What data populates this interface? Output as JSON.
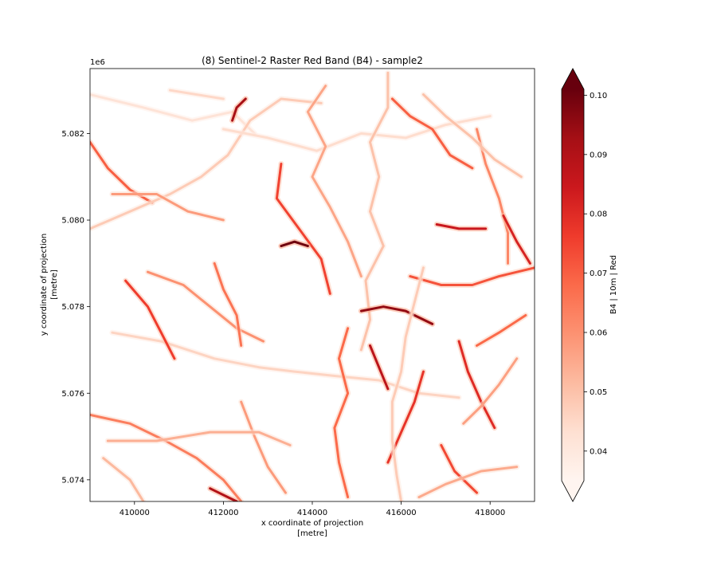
{
  "chart_data": {
    "type": "heatmap",
    "title": "(8) Sentinel-2 Raster Red Band (B4) - sample2",
    "xlabel": "x coordinate of projection",
    "xlabel_units": "[metre]",
    "ylabel": "y coordinate of projection",
    "ylabel_units": "[metre]",
    "xlim": [
      409000,
      419000
    ],
    "ylim": [
      5073500,
      5083500
    ],
    "x_ticks": [
      410000,
      412000,
      414000,
      416000,
      418000
    ],
    "x_tick_labels": [
      "410000",
      "412000",
      "414000",
      "416000",
      "418000"
    ],
    "y_ticks": [
      5074000,
      5076000,
      5078000,
      5080000,
      5082000
    ],
    "y_tick_labels": [
      "5.074",
      "5.076",
      "5.078",
      "5.080",
      "5.082"
    ],
    "y_offset_label": "1e6",
    "colorbar": {
      "label": "B4 | 10m | Red",
      "colormap": "Reds",
      "vmin": 0.035,
      "vmax": 0.101,
      "extend": "both",
      "ticks": [
        0.04,
        0.05,
        0.06,
        0.07,
        0.08,
        0.09,
        0.1
      ],
      "tick_labels": [
        "0.04",
        "0.05",
        "0.06",
        "0.07",
        "0.08",
        "0.09",
        "0.10"
      ]
    },
    "grid": false,
    "background_value": "NaN",
    "features": [
      {
        "v": 0.042,
        "pts": [
          [
            409000,
            5082900
          ],
          [
            410200,
            5082600
          ],
          [
            411300,
            5082300
          ],
          [
            412200,
            5082500
          ],
          [
            412700,
            5082000
          ]
        ]
      },
      {
        "v": 0.07,
        "pts": [
          [
            409000,
            5081800
          ],
          [
            409400,
            5081200
          ],
          [
            409900,
            5080700
          ],
          [
            410400,
            5080400
          ]
        ]
      },
      {
        "v": 0.048,
        "pts": [
          [
            409000,
            5079800
          ],
          [
            409900,
            5080200
          ],
          [
            410800,
            5080600
          ],
          [
            411500,
            5081000
          ],
          [
            412100,
            5081500
          ],
          [
            412600,
            5082300
          ],
          [
            413300,
            5082800
          ],
          [
            414200,
            5082700
          ]
        ]
      },
      {
        "v": 0.058,
        "pts": [
          [
            409500,
            5080600
          ],
          [
            410500,
            5080600
          ],
          [
            411200,
            5080200
          ],
          [
            412000,
            5080000
          ]
        ]
      },
      {
        "v": 0.044,
        "pts": [
          [
            412000,
            5082100
          ],
          [
            413000,
            5081900
          ],
          [
            414100,
            5081600
          ],
          [
            415100,
            5082000
          ],
          [
            416100,
            5081900
          ],
          [
            417000,
            5082200
          ],
          [
            418000,
            5082400
          ]
        ]
      },
      {
        "v": 0.075,
        "pts": [
          [
            413300,
            5081300
          ],
          [
            413200,
            5080500
          ],
          [
            413700,
            5079800
          ],
          [
            414200,
            5079100
          ],
          [
            414400,
            5078300
          ]
        ]
      },
      {
        "v": 0.056,
        "pts": [
          [
            414300,
            5083100
          ],
          [
            413900,
            5082500
          ],
          [
            414300,
            5081700
          ],
          [
            414000,
            5081000
          ],
          [
            414400,
            5080300
          ],
          [
            414800,
            5079500
          ],
          [
            415100,
            5078700
          ]
        ]
      },
      {
        "v": 0.05,
        "pts": [
          [
            415700,
            5083400
          ],
          [
            415700,
            5082600
          ],
          [
            415300,
            5081800
          ],
          [
            415500,
            5081000
          ],
          [
            415300,
            5080200
          ],
          [
            415600,
            5079400
          ],
          [
            415200,
            5078600
          ],
          [
            415300,
            5077700
          ],
          [
            415100,
            5077000
          ]
        ]
      },
      {
        "v": 0.095,
        "pts": [
          [
            415100,
            5077900
          ],
          [
            415600,
            5078000
          ],
          [
            416100,
            5077900
          ],
          [
            416700,
            5077600
          ]
        ]
      },
      {
        "v": 0.072,
        "pts": [
          [
            416200,
            5078700
          ],
          [
            416900,
            5078500
          ],
          [
            417600,
            5078500
          ],
          [
            418200,
            5078700
          ],
          [
            419000,
            5078900
          ]
        ]
      },
      {
        "v": 0.046,
        "pts": [
          [
            409500,
            5077400
          ],
          [
            410600,
            5077200
          ],
          [
            411800,
            5076800
          ],
          [
            412800,
            5076600
          ],
          [
            413600,
            5076500
          ],
          [
            414500,
            5076400
          ],
          [
            415500,
            5076300
          ],
          [
            416400,
            5076000
          ],
          [
            417300,
            5075900
          ]
        ]
      },
      {
        "v": 0.06,
        "pts": [
          [
            410300,
            5078800
          ],
          [
            411100,
            5078500
          ],
          [
            411700,
            5078000
          ],
          [
            412300,
            5077500
          ],
          [
            412900,
            5077200
          ]
        ]
      },
      {
        "v": 0.068,
        "pts": [
          [
            414800,
            5077500
          ],
          [
            414600,
            5076800
          ],
          [
            414800,
            5076000
          ],
          [
            414500,
            5075200
          ],
          [
            414600,
            5074400
          ],
          [
            414800,
            5073600
          ]
        ]
      },
      {
        "v": 0.078,
        "pts": [
          [
            416500,
            5076500
          ],
          [
            416300,
            5075800
          ],
          [
            416000,
            5075100
          ],
          [
            415700,
            5074400
          ]
        ]
      },
      {
        "v": 0.08,
        "pts": [
          [
            417300,
            5077200
          ],
          [
            417500,
            5076500
          ],
          [
            417800,
            5075800
          ],
          [
            418100,
            5075200
          ]
        ]
      },
      {
        "v": 0.062,
        "pts": [
          [
            417700,
            5082100
          ],
          [
            417900,
            5081300
          ],
          [
            418200,
            5080500
          ],
          [
            418400,
            5079700
          ],
          [
            418400,
            5079000
          ]
        ]
      },
      {
        "v": 0.085,
        "pts": [
          [
            416800,
            5079900
          ],
          [
            417300,
            5079800
          ],
          [
            417900,
            5079800
          ]
        ]
      },
      {
        "v": 0.064,
        "pts": [
          [
            409000,
            5075500
          ],
          [
            409900,
            5075300
          ],
          [
            410700,
            5074900
          ],
          [
            411400,
            5074500
          ],
          [
            412000,
            5074000
          ],
          [
            412400,
            5073500
          ]
        ]
      },
      {
        "v": 0.052,
        "pts": [
          [
            409300,
            5074500
          ],
          [
            409900,
            5074000
          ],
          [
            410200,
            5073500
          ]
        ]
      },
      {
        "v": 0.058,
        "pts": [
          [
            412400,
            5075800
          ],
          [
            412700,
            5075000
          ],
          [
            413000,
            5074300
          ],
          [
            413400,
            5073700
          ]
        ]
      },
      {
        "v": 0.054,
        "pts": [
          [
            409400,
            5074900
          ],
          [
            410500,
            5074900
          ],
          [
            411700,
            5075100
          ],
          [
            412800,
            5075100
          ],
          [
            413500,
            5074800
          ]
        ]
      },
      {
        "v": 0.09,
        "pts": [
          [
            411700,
            5073800
          ],
          [
            412100,
            5073600
          ],
          [
            412300,
            5073500
          ]
        ]
      },
      {
        "v": 0.074,
        "pts": [
          [
            416900,
            5074800
          ],
          [
            417200,
            5074200
          ],
          [
            417700,
            5073700
          ]
        ]
      },
      {
        "v": 0.05,
        "pts": [
          [
            416500,
            5082900
          ],
          [
            417000,
            5082400
          ],
          [
            417600,
            5081900
          ],
          [
            418100,
            5081400
          ],
          [
            418700,
            5081000
          ]
        ]
      },
      {
        "v": 0.066,
        "pts": [
          [
            411800,
            5079000
          ],
          [
            412000,
            5078400
          ],
          [
            412300,
            5077800
          ],
          [
            412400,
            5077100
          ]
        ]
      },
      {
        "v": 0.057,
        "pts": [
          [
            418600,
            5076800
          ],
          [
            418200,
            5076200
          ],
          [
            417800,
            5075700
          ],
          [
            417400,
            5075300
          ]
        ]
      },
      {
        "v": 0.068,
        "pts": [
          [
            418800,
            5077800
          ],
          [
            418200,
            5077400
          ],
          [
            417700,
            5077100
          ]
        ]
      },
      {
        "v": 0.1,
        "pts": [
          [
            413300,
            5079400
          ],
          [
            413600,
            5079500
          ],
          [
            413900,
            5079400
          ]
        ]
      },
      {
        "v": 0.088,
        "pts": [
          [
            415300,
            5077100
          ],
          [
            415500,
            5076600
          ],
          [
            415700,
            5076100
          ]
        ]
      },
      {
        "v": 0.07,
        "pts": [
          [
            415800,
            5082800
          ],
          [
            416200,
            5082400
          ],
          [
            416700,
            5082100
          ],
          [
            417100,
            5081500
          ],
          [
            417600,
            5081200
          ]
        ]
      },
      {
        "v": 0.045,
        "pts": [
          [
            410800,
            5083000
          ],
          [
            411400,
            5082900
          ],
          [
            412000,
            5082800
          ]
        ]
      },
      {
        "v": 0.076,
        "pts": [
          [
            409800,
            5078600
          ],
          [
            410300,
            5078000
          ],
          [
            410600,
            5077400
          ],
          [
            410900,
            5076800
          ]
        ]
      },
      {
        "v": 0.055,
        "pts": [
          [
            416400,
            5073600
          ],
          [
            417000,
            5073900
          ],
          [
            417800,
            5074200
          ],
          [
            418600,
            5074300
          ]
        ]
      },
      {
        "v": 0.082,
        "pts": [
          [
            418300,
            5080100
          ],
          [
            418600,
            5079500
          ],
          [
            418900,
            5079000
          ]
        ]
      },
      {
        "v": 0.048,
        "pts": [
          [
            416500,
            5078900
          ],
          [
            416300,
            5078100
          ],
          [
            416100,
            5077300
          ],
          [
            416000,
            5076500
          ],
          [
            415800,
            5075800
          ],
          [
            415800,
            5074900
          ],
          [
            415900,
            5074100
          ],
          [
            416000,
            5073500
          ]
        ]
      },
      {
        "v": 0.092,
        "pts": [
          [
            412200,
            5082300
          ],
          [
            412300,
            5082600
          ],
          [
            412500,
            5082800
          ]
        ]
      }
    ]
  }
}
